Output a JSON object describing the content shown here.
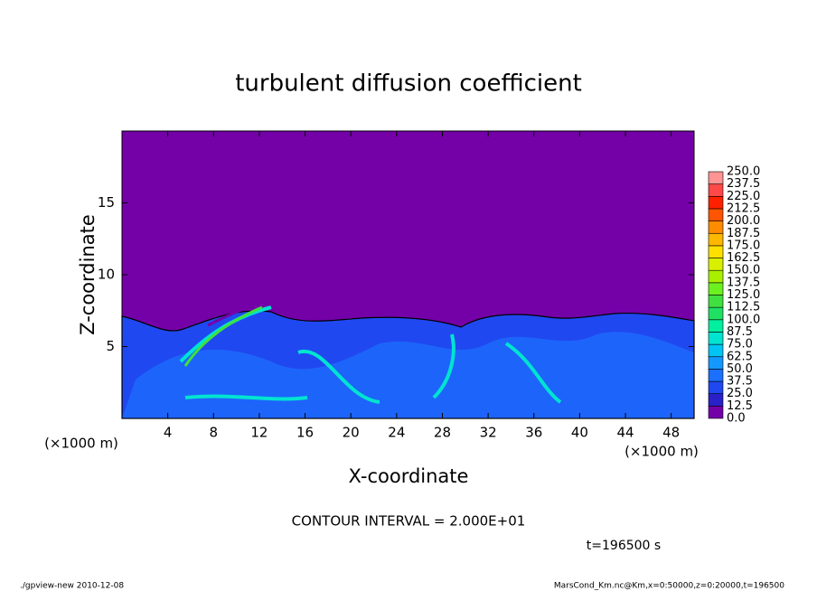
{
  "chart_data": {
    "type": "contour",
    "title": "turbulent diffusion coefficient",
    "xlabel": "X-coordinate",
    "ylabel": "Z-coordinate",
    "x_unit": "(×1000 m)",
    "xlim": [
      0,
      50
    ],
    "ylim": [
      0,
      20
    ],
    "xticks": [
      4,
      8,
      12,
      16,
      20,
      24,
      28,
      32,
      36,
      40,
      44,
      48
    ],
    "yticks": [
      5,
      10,
      15
    ],
    "colorbar": {
      "levels": [
        {
          "value": 0,
          "label": "0.0"
        },
        {
          "value": 12.5,
          "label": "12.5"
        },
        {
          "value": 25,
          "label": "25.0"
        },
        {
          "value": 37.5,
          "label": "37.5"
        },
        {
          "value": 50,
          "label": "50.0"
        },
        {
          "value": 62.5,
          "label": "62.5"
        },
        {
          "value": 75,
          "label": "75.0"
        },
        {
          "value": 87.5,
          "label": "87.5"
        },
        {
          "value": 100,
          "label": "100.0"
        },
        {
          "value": 112.5,
          "label": "112.5"
        },
        {
          "value": 125,
          "label": "125.0"
        },
        {
          "value": 137.5,
          "label": "137.5"
        },
        {
          "value": 150,
          "label": "150.0"
        },
        {
          "value": 162.5,
          "label": "162.5"
        },
        {
          "value": 175,
          "label": "175.0"
        },
        {
          "value": 187.5,
          "label": "187.5"
        },
        {
          "value": 200,
          "label": "200.0"
        },
        {
          "value": 212.5,
          "label": "212.5"
        },
        {
          "value": 225,
          "label": "225.0"
        },
        {
          "value": 237.5,
          "label": "237.5"
        },
        {
          "value": 250,
          "label": "250.0"
        }
      ],
      "colors": [
        "#7400a8",
        "#2a20c8",
        "#2048f0",
        "#1c70ff",
        "#1498ff",
        "#00c4f4",
        "#00e4d0",
        "#00f0a0",
        "#20e064",
        "#40e040",
        "#6cf020",
        "#a8f000",
        "#d8f000",
        "#ffe000",
        "#ffb800",
        "#ff8c00",
        "#ff5400",
        "#ff2000",
        "#ff4848",
        "#ff9494"
      ]
    },
    "contour_interval": "CONTOUR INTERVAL = 2.000E+01",
    "time_label": "t=196500 s",
    "footer_left": "./gpview-new   2010-12-08",
    "footer_right": "MarsCond_Km.nc@Km,x=0:50000,z=0:20000,t=196500"
  }
}
